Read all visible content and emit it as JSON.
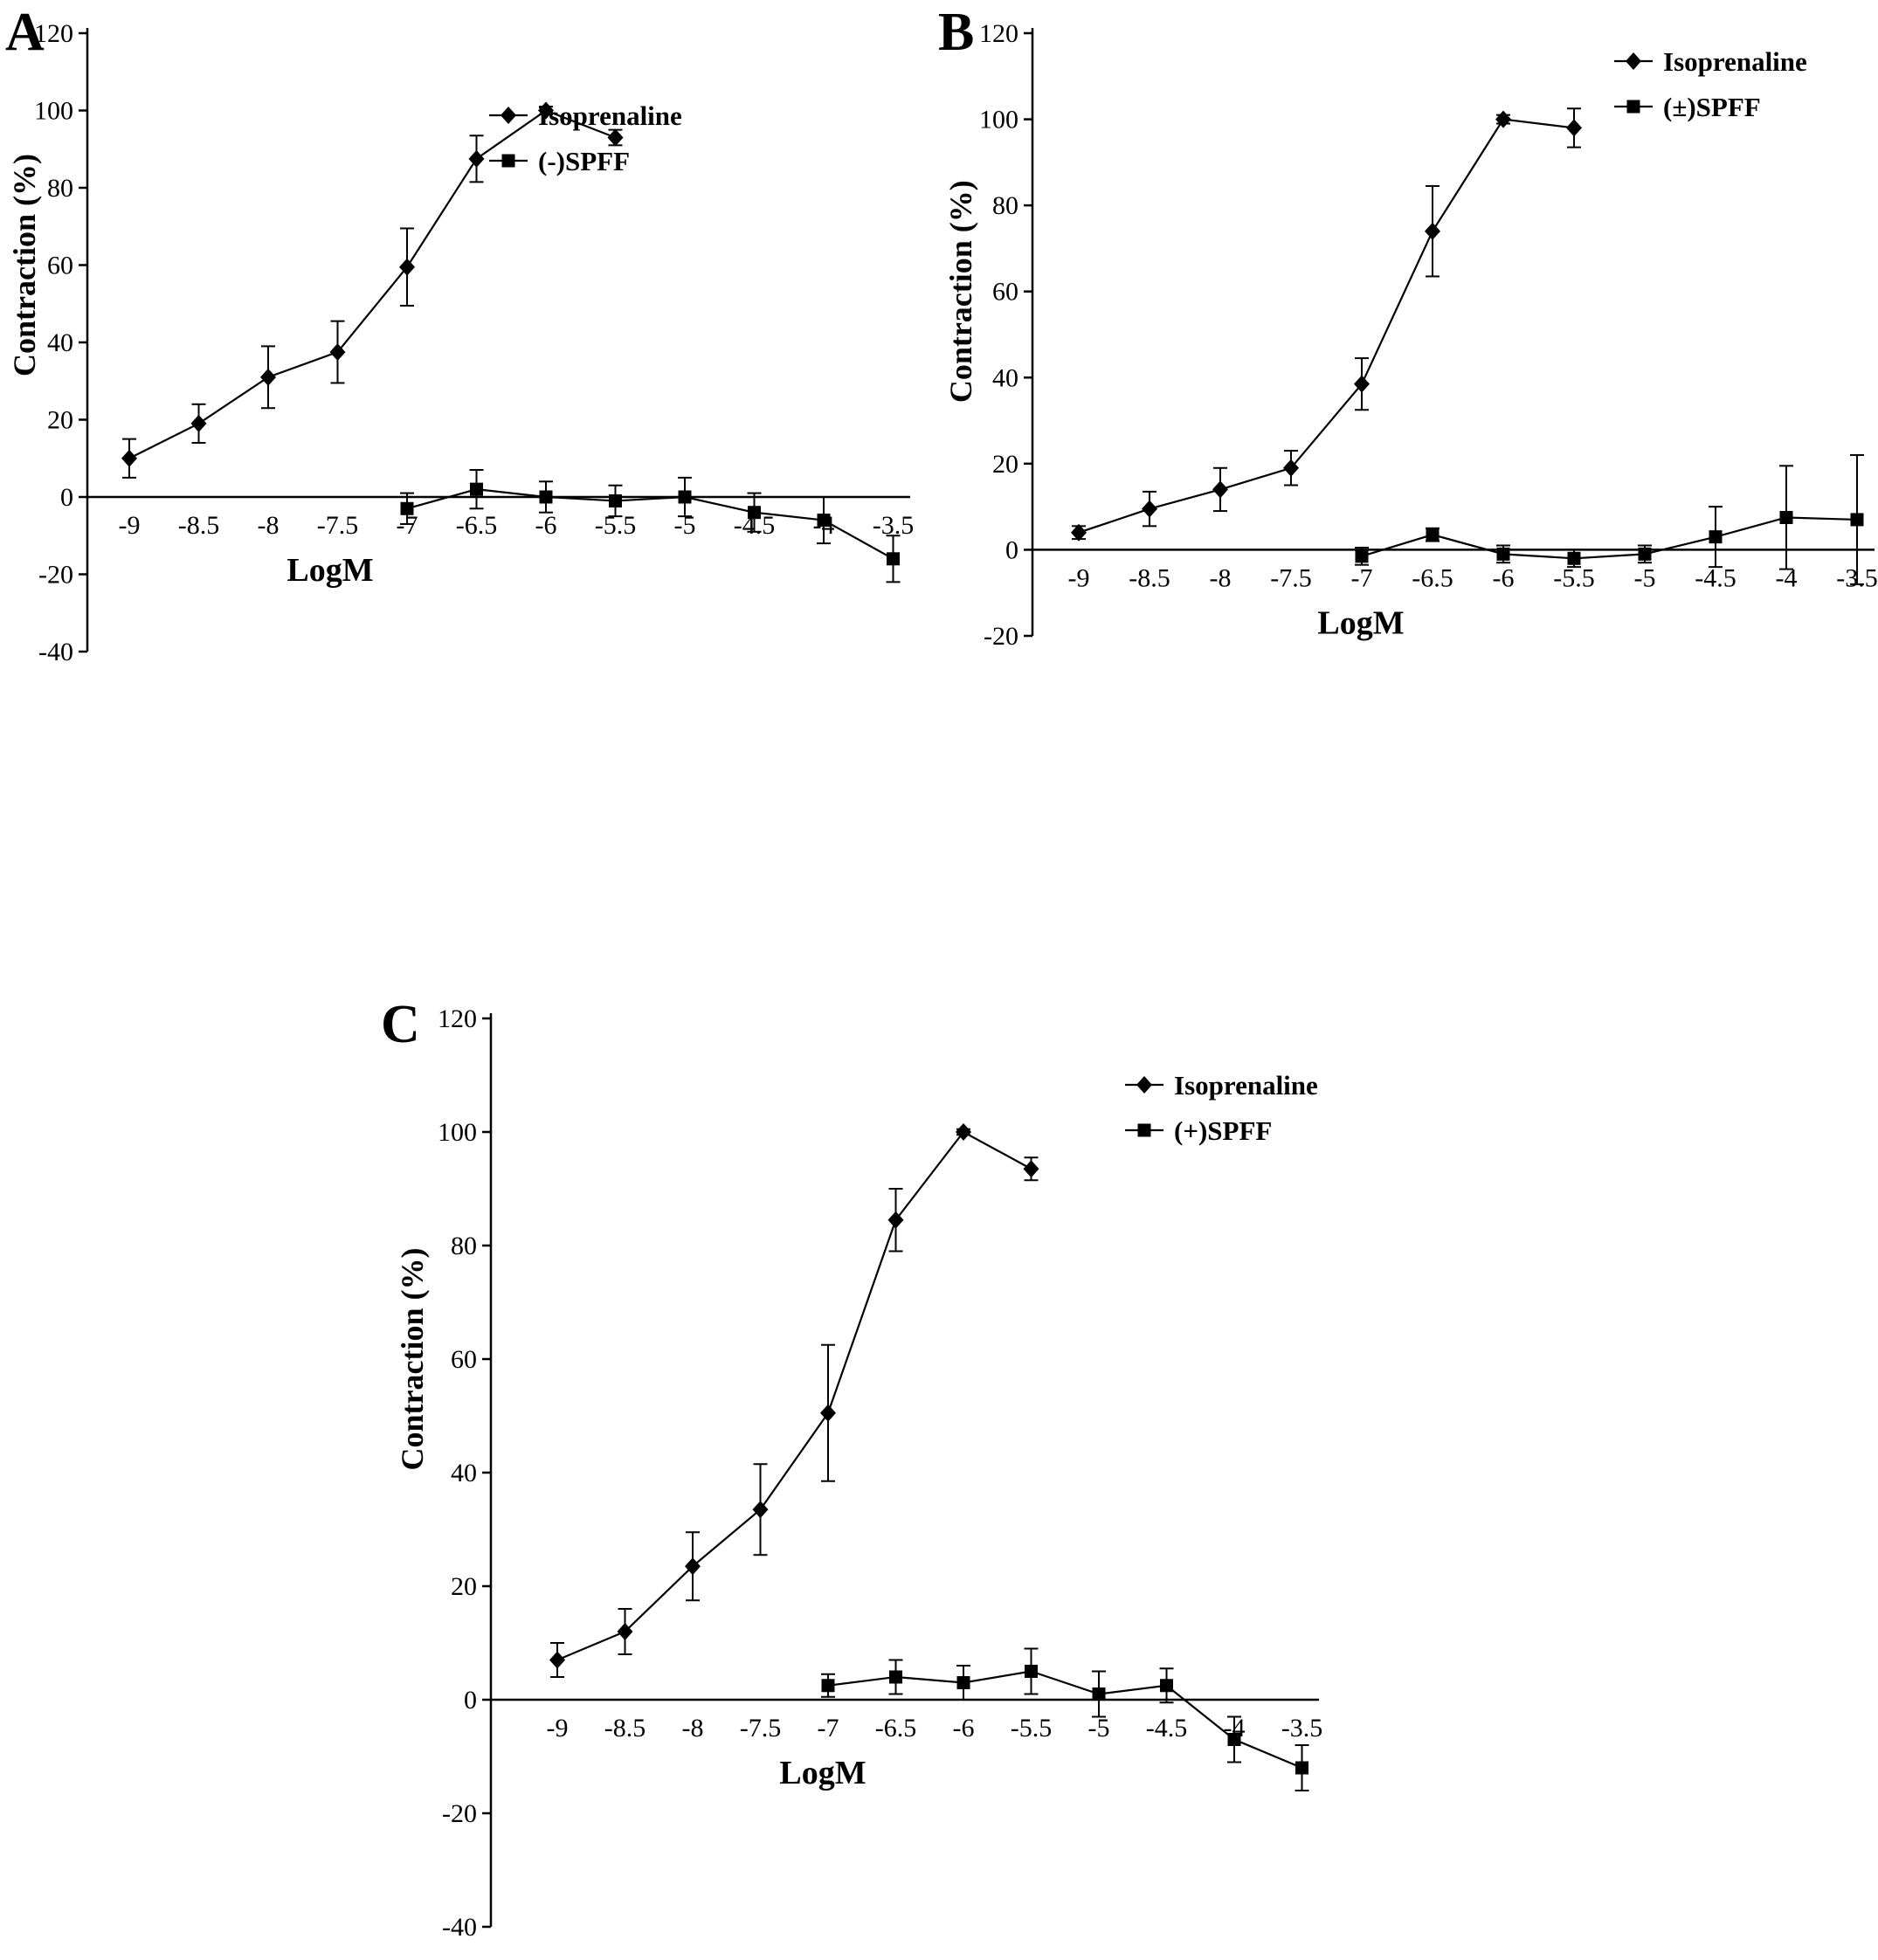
{
  "colors": {
    "foreground": "#000000",
    "background": "#ffffff"
  },
  "chart_data": [
    {
      "type": "line",
      "panel": "A",
      "title": "",
      "xlabel": "LogM",
      "ylabel": "Contraction (%)",
      "ylim": [
        -40,
        120
      ],
      "yticks": [
        -40,
        -20,
        0,
        20,
        40,
        60,
        80,
        100,
        120
      ],
      "xticks": [
        -9,
        -8.5,
        -8,
        -7.5,
        -7,
        -6.5,
        -6,
        -5.5,
        -5,
        -4.5,
        -4,
        -3.5
      ],
      "xtick_labels": [
        "-9",
        "-8.5",
        "-8",
        "-7.5",
        "-7",
        "-6.5",
        "-6",
        "-5.5",
        "-5",
        "-4.5",
        "-4",
        "-3.5"
      ],
      "grid": false,
      "legend_position": "upper-right-inside",
      "series": [
        {
          "name": "Isoprenaline",
          "marker": "diamond",
          "x": [
            -9,
            -8.5,
            -8,
            -7.5,
            -7,
            -6.5,
            -6,
            -5.5
          ],
          "y": [
            10,
            19,
            31,
            37.5,
            59.5,
            87.5,
            100,
            93
          ],
          "err": [
            5,
            5,
            8,
            8,
            10,
            6,
            1,
            2
          ]
        },
        {
          "name": "(-)SPFF",
          "marker": "square",
          "x": [
            -7,
            -6.5,
            -6,
            -5.5,
            -5,
            -4.5,
            -4,
            -3.5
          ],
          "y": [
            -3,
            2,
            0,
            -1,
            0,
            -4,
            -6,
            -16
          ],
          "err": [
            4,
            5,
            4,
            4,
            5,
            5,
            6,
            6
          ]
        }
      ]
    },
    {
      "type": "line",
      "panel": "B",
      "title": "",
      "xlabel": "LogM",
      "ylabel": "Contraction (%)",
      "ylim": [
        -20,
        120
      ],
      "yticks": [
        -20,
        0,
        20,
        40,
        60,
        80,
        100,
        120
      ],
      "xticks": [
        -9,
        -8.5,
        -8,
        -7.5,
        -7,
        -6.5,
        -6,
        -5.5,
        -5,
        -4.5,
        -4,
        -3.5
      ],
      "xtick_labels": [
        "-9",
        "-8.5",
        "-8",
        "-7.5",
        "-7",
        "-6.5",
        "-6",
        "-5.5",
        "-5",
        "-4.5",
        "-4",
        "-3.5"
      ],
      "grid": false,
      "legend_position": "upper-right-inside",
      "series": [
        {
          "name": "Isoprenaline",
          "marker": "diamond",
          "x": [
            -9,
            -8.5,
            -8,
            -7.5,
            -7,
            -6.5,
            -6,
            -5.5
          ],
          "y": [
            4,
            9.5,
            14,
            19,
            38.5,
            74,
            100,
            98
          ],
          "err": [
            1.5,
            4,
            5,
            4,
            6,
            10.5,
            1,
            4.5
          ]
        },
        {
          "name": "(±)SPFF",
          "marker": "square",
          "x": [
            -7,
            -6.5,
            -6,
            -5.5,
            -5,
            -4.5,
            -4,
            -3.5
          ],
          "y": [
            -1.5,
            3.5,
            -1,
            -2,
            -1,
            3,
            7.5,
            7
          ],
          "err": [
            2,
            1.5,
            2,
            2,
            2,
            7,
            12,
            15
          ]
        }
      ]
    },
    {
      "type": "line",
      "panel": "C",
      "title": "",
      "xlabel": "LogM",
      "ylabel": "Contraction (%)",
      "ylim": [
        -40,
        120
      ],
      "yticks": [
        -40,
        -20,
        0,
        20,
        40,
        60,
        80,
        100,
        120
      ],
      "xticks": [
        -9,
        -8.5,
        -8,
        -7.5,
        -7,
        -6.5,
        -6,
        -5.5,
        -5,
        -4.5,
        -4,
        -3.5
      ],
      "xtick_labels": [
        "-9",
        "-8.5",
        "-8",
        "-7.5",
        "-7",
        "-6.5",
        "-6",
        "-5.5",
        "-5",
        "-4.5",
        "-4",
        "-3.5"
      ],
      "grid": false,
      "legend_position": "upper-right-inside",
      "series": [
        {
          "name": "Isoprenaline",
          "marker": "diamond",
          "x": [
            -9,
            -8.5,
            -8,
            -7.5,
            -7,
            -6.5,
            -6,
            -5.5
          ],
          "y": [
            7,
            12,
            23.5,
            33.5,
            50.5,
            84.5,
            100,
            93.5
          ],
          "err": [
            3,
            4,
            6,
            8,
            12,
            5.5,
            0.5,
            2
          ]
        },
        {
          "name": "(+)SPFF",
          "marker": "square",
          "x": [
            -7,
            -6.5,
            -6,
            -5.5,
            -5,
            -4.5,
            -4,
            -3.5
          ],
          "y": [
            2.5,
            4,
            3,
            5,
            1,
            2.5,
            -7,
            -12
          ],
          "err": [
            2,
            3,
            3,
            4,
            4,
            3,
            4,
            4
          ]
        }
      ]
    }
  ]
}
